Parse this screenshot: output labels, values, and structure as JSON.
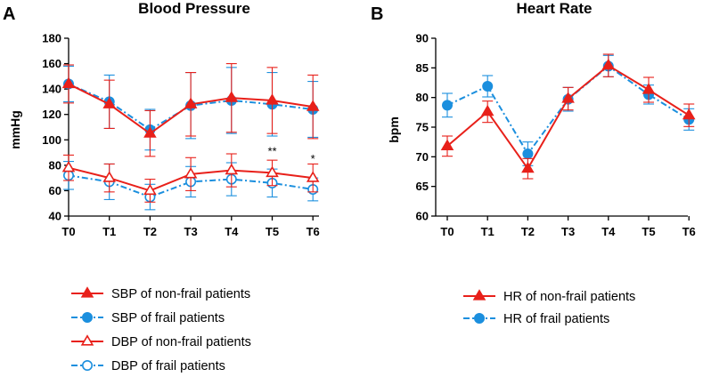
{
  "colors": {
    "non_frail": "#e8201a",
    "frail": "#1b8fde",
    "axis": "#000000"
  },
  "chart_data": [
    {
      "type": "line",
      "panel_label": "A",
      "title": "Blood Pressure",
      "xlabel": "",
      "ylabel": "mmHg",
      "categories": [
        "T0",
        "T1",
        "T2",
        "T3",
        "T4",
        "T5",
        "T6"
      ],
      "ylim": [
        40,
        180
      ],
      "yticks": [
        40,
        60,
        80,
        100,
        120,
        140,
        160,
        180
      ],
      "series": [
        {
          "name": "SBP of non-frail patients",
          "color": "non_frail",
          "style": "solid",
          "marker": "triangle-filled",
          "values": [
            144,
            128,
            105,
            128,
            133,
            131,
            126
          ],
          "err": [
            15,
            19,
            18,
            25,
            27,
            26,
            25
          ]
        },
        {
          "name": "SBP of frail patients",
          "color": "frail",
          "style": "dashdot",
          "marker": "circle-filled",
          "values": [
            144,
            130,
            108,
            127,
            131,
            128,
            124
          ],
          "err": [
            14,
            21,
            16,
            26,
            26,
            25,
            22
          ]
        },
        {
          "name": "DBP of non-frail patients",
          "color": "non_frail",
          "style": "solid",
          "marker": "triangle-open",
          "values": [
            78,
            70,
            60,
            73,
            76,
            74,
            70
          ],
          "err": [
            10,
            11,
            9,
            13,
            13,
            10,
            11
          ]
        },
        {
          "name": "DBP of frail patients",
          "color": "frail",
          "style": "dashdot",
          "marker": "circle-open",
          "values": [
            72,
            67,
            55,
            67,
            69,
            66,
            61
          ],
          "err": [
            11,
            14,
            10,
            12,
            13,
            11,
            9
          ]
        }
      ],
      "annotations": [
        {
          "category": "T5",
          "value": 90,
          "text": "**"
        },
        {
          "category": "T6",
          "value": 84,
          "text": "*"
        }
      ]
    },
    {
      "type": "line",
      "panel_label": "B",
      "title": "Heart Rate",
      "xlabel": "",
      "ylabel": "bpm",
      "categories": [
        "T0",
        "T1",
        "T2",
        "T3",
        "T4",
        "T5",
        "T6"
      ],
      "ylim": [
        60,
        90
      ],
      "yticks": [
        60,
        65,
        70,
        75,
        80,
        85,
        90
      ],
      "series": [
        {
          "name": "HR of non-frail patients",
          "color": "non_frail",
          "style": "solid",
          "marker": "triangle-filled",
          "values": [
            71.8,
            77.6,
            68.0,
            79.8,
            85.4,
            81.3,
            77.0
          ],
          "err": [
            1.7,
            1.8,
            1.7,
            1.9,
            1.9,
            2.1,
            1.9
          ]
        },
        {
          "name": "HR of frail patients",
          "color": "frail",
          "style": "dashdot",
          "marker": "circle-filled",
          "values": [
            78.7,
            81.9,
            70.5,
            79.7,
            85.3,
            80.5,
            76.3
          ],
          "err": [
            2.0,
            1.8,
            2.0,
            2.0,
            1.8,
            1.6,
            1.8
          ]
        }
      ]
    }
  ]
}
